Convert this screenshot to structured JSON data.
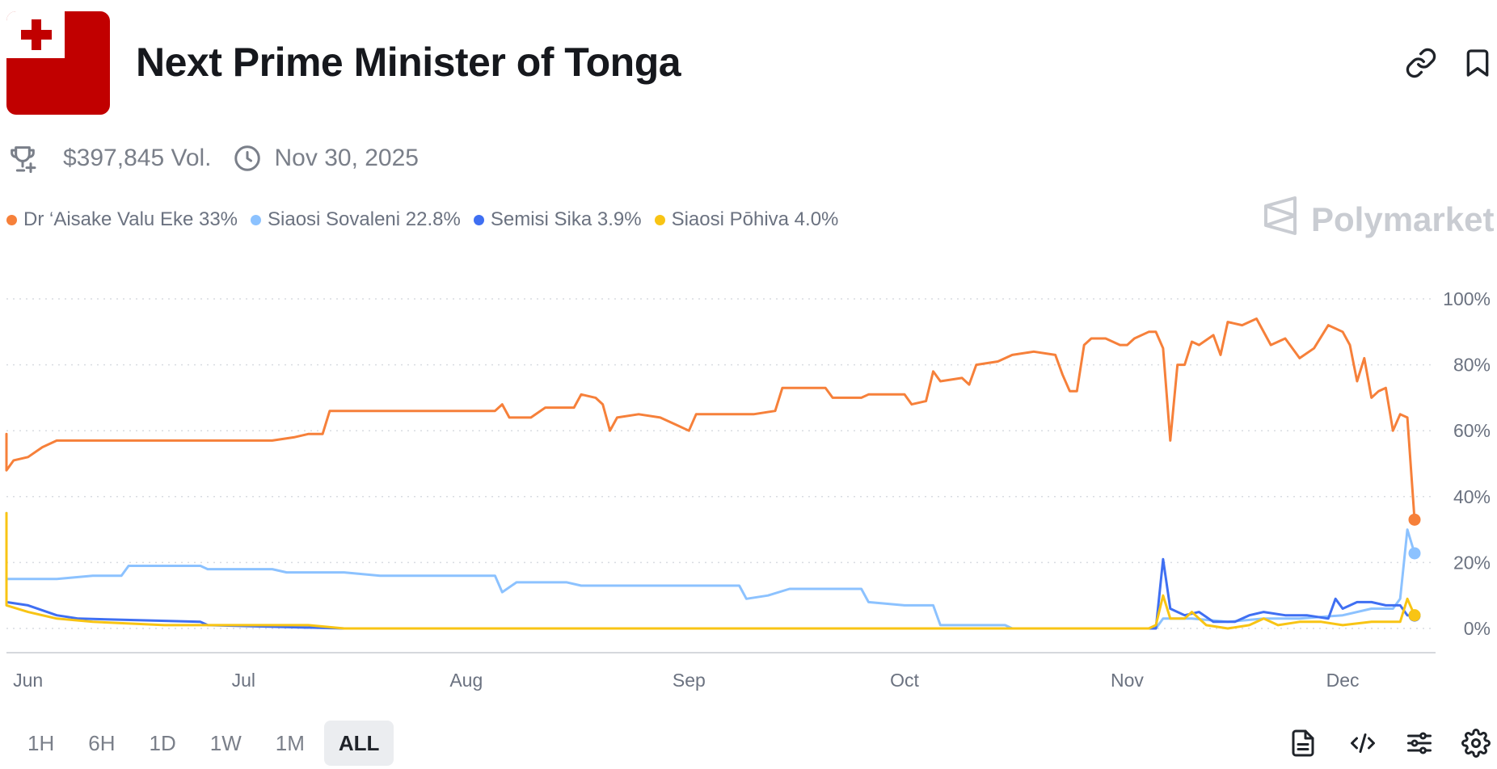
{
  "header": {
    "title": "Next Prime Minister of Tonga",
    "flag_icon": "tonga-flag",
    "actions": [
      {
        "icon": "link-icon"
      },
      {
        "icon": "bookmark-icon"
      }
    ]
  },
  "meta": {
    "volume": "$397,845 Vol.",
    "end_date": "Nov 30, 2025"
  },
  "brand": "Polymarket",
  "legend": [
    {
      "label": "Dr ‘Aisake Valu Eke 33%",
      "color": "#f6803a"
    },
    {
      "label": "Siaosi Sovaleni 22.8%",
      "color": "#8cc2ff"
    },
    {
      "label": "Semisi Sika 3.9%",
      "color": "#3f6ff2"
    },
    {
      "label": "Siaosi Pōhiva 4.0%",
      "color": "#f8c414"
    }
  ],
  "time_ranges": [
    {
      "label": "1H",
      "active": false
    },
    {
      "label": "6H",
      "active": false
    },
    {
      "label": "1D",
      "active": false
    },
    {
      "label": "1W",
      "active": false
    },
    {
      "label": "1M",
      "active": false
    },
    {
      "label": "ALL",
      "active": true
    }
  ],
  "tools": [
    "document-icon",
    "code-icon",
    "sliders-icon",
    "gear-icon"
  ],
  "chart_data": {
    "type": "line",
    "x_ticks": [
      "Jun",
      "Jul",
      "Aug",
      "Sep",
      "Oct",
      "Nov",
      "Dec"
    ],
    "y_ticks": [
      "100%",
      "80%",
      "60%",
      "40%",
      "20%",
      "0%"
    ],
    "ylim": [
      0,
      100
    ],
    "xlim": [
      "2025-05-29",
      "2025-12-11"
    ],
    "grid": true,
    "series": [
      {
        "name": "Dr ‘Aisake Valu Eke",
        "color": "#f6803a",
        "current": 33,
        "points": [
          [
            "2025-05-29",
            59
          ],
          [
            "2025-05-29",
            48
          ],
          [
            "2025-05-30",
            51
          ],
          [
            "2025-06-01",
            52
          ],
          [
            "2025-06-03",
            55
          ],
          [
            "2025-06-05",
            57
          ],
          [
            "2025-06-12",
            57
          ],
          [
            "2025-06-20",
            57
          ],
          [
            "2025-06-30",
            57
          ],
          [
            "2025-07-05",
            57
          ],
          [
            "2025-07-08",
            58
          ],
          [
            "2025-07-10",
            59
          ],
          [
            "2025-07-12",
            59
          ],
          [
            "2025-07-13",
            66
          ],
          [
            "2025-07-20",
            66
          ],
          [
            "2025-07-25",
            66
          ],
          [
            "2025-08-01",
            66
          ],
          [
            "2025-08-05",
            66
          ],
          [
            "2025-08-06",
            68
          ],
          [
            "2025-08-07",
            64
          ],
          [
            "2025-08-10",
            64
          ],
          [
            "2025-08-12",
            67
          ],
          [
            "2025-08-16",
            67
          ],
          [
            "2025-08-17",
            71
          ],
          [
            "2025-08-19",
            70
          ],
          [
            "2025-08-20",
            68
          ],
          [
            "2025-08-21",
            60
          ],
          [
            "2025-08-22",
            64
          ],
          [
            "2025-08-25",
            65
          ],
          [
            "2025-08-28",
            64
          ],
          [
            "2025-08-30",
            62
          ],
          [
            "2025-09-01",
            60
          ],
          [
            "2025-09-02",
            65
          ],
          [
            "2025-09-05",
            65
          ],
          [
            "2025-09-10",
            65
          ],
          [
            "2025-09-13",
            66
          ],
          [
            "2025-09-14",
            73
          ],
          [
            "2025-09-20",
            73
          ],
          [
            "2025-09-21",
            70
          ],
          [
            "2025-09-25",
            70
          ],
          [
            "2025-09-26",
            71
          ],
          [
            "2025-10-01",
            71
          ],
          [
            "2025-10-02",
            68
          ],
          [
            "2025-10-04",
            69
          ],
          [
            "2025-10-05",
            78
          ],
          [
            "2025-10-06",
            75
          ],
          [
            "2025-10-09",
            76
          ],
          [
            "2025-10-10",
            74
          ],
          [
            "2025-10-11",
            80
          ],
          [
            "2025-10-14",
            81
          ],
          [
            "2025-10-16",
            83
          ],
          [
            "2025-10-19",
            84
          ],
          [
            "2025-10-22",
            83
          ],
          [
            "2025-10-23",
            77
          ],
          [
            "2025-10-24",
            72
          ],
          [
            "2025-10-25",
            72
          ],
          [
            "2025-10-26",
            86
          ],
          [
            "2025-10-27",
            88
          ],
          [
            "2025-10-29",
            88
          ],
          [
            "2025-10-31",
            86
          ],
          [
            "2025-11-01",
            86
          ],
          [
            "2025-11-02",
            88
          ],
          [
            "2025-11-04",
            90
          ],
          [
            "2025-11-05",
            90
          ],
          [
            "2025-11-06",
            85
          ],
          [
            "2025-11-07",
            57
          ],
          [
            "2025-11-08",
            80
          ],
          [
            "2025-11-09",
            80
          ],
          [
            "2025-11-10",
            87
          ],
          [
            "2025-11-11",
            86
          ],
          [
            "2025-11-13",
            89
          ],
          [
            "2025-11-14",
            83
          ],
          [
            "2025-11-15",
            93
          ],
          [
            "2025-11-17",
            92
          ],
          [
            "2025-11-19",
            94
          ],
          [
            "2025-11-21",
            86
          ],
          [
            "2025-11-23",
            88
          ],
          [
            "2025-11-25",
            82
          ],
          [
            "2025-11-27",
            85
          ],
          [
            "2025-11-29",
            92
          ],
          [
            "2025-12-01",
            90
          ],
          [
            "2025-12-02",
            86
          ],
          [
            "2025-12-03",
            75
          ],
          [
            "2025-12-04",
            82
          ],
          [
            "2025-12-05",
            70
          ],
          [
            "2025-12-06",
            72
          ],
          [
            "2025-12-07",
            73
          ],
          [
            "2025-12-08",
            60
          ],
          [
            "2025-12-09",
            65
          ],
          [
            "2025-12-10",
            64
          ],
          [
            "2025-12-11",
            33
          ]
        ]
      },
      {
        "name": "Siaosi Sovaleni",
        "color": "#8cc2ff",
        "current": 22.8,
        "points": [
          [
            "2025-05-29",
            35
          ],
          [
            "2025-05-29",
            15
          ],
          [
            "2025-06-01",
            15
          ],
          [
            "2025-06-05",
            15
          ],
          [
            "2025-06-10",
            16
          ],
          [
            "2025-06-14",
            16
          ],
          [
            "2025-06-15",
            19
          ],
          [
            "2025-06-18",
            19
          ],
          [
            "2025-06-25",
            19
          ],
          [
            "2025-06-26",
            18
          ],
          [
            "2025-07-05",
            18
          ],
          [
            "2025-07-07",
            17
          ],
          [
            "2025-07-15",
            17
          ],
          [
            "2025-07-20",
            16
          ],
          [
            "2025-08-05",
            16
          ],
          [
            "2025-08-06",
            11
          ],
          [
            "2025-08-08",
            14
          ],
          [
            "2025-08-15",
            14
          ],
          [
            "2025-08-17",
            13
          ],
          [
            "2025-08-25",
            13
          ],
          [
            "2025-09-05",
            13
          ],
          [
            "2025-09-08",
            13
          ],
          [
            "2025-09-09",
            9
          ],
          [
            "2025-09-12",
            10
          ],
          [
            "2025-09-15",
            12
          ],
          [
            "2025-09-20",
            12
          ],
          [
            "2025-09-25",
            12
          ],
          [
            "2025-09-26",
            8
          ],
          [
            "2025-10-01",
            7
          ],
          [
            "2025-10-05",
            7
          ],
          [
            "2025-10-06",
            1
          ],
          [
            "2025-10-10",
            1
          ],
          [
            "2025-10-15",
            1
          ],
          [
            "2025-10-16",
            0
          ],
          [
            "2025-11-05",
            0
          ],
          [
            "2025-11-06",
            3
          ],
          [
            "2025-11-08",
            3
          ],
          [
            "2025-11-10",
            3
          ],
          [
            "2025-11-15",
            2
          ],
          [
            "2025-11-20",
            3
          ],
          [
            "2025-11-25",
            3
          ],
          [
            "2025-12-01",
            4
          ],
          [
            "2025-12-05",
            6
          ],
          [
            "2025-12-08",
            6
          ],
          [
            "2025-12-09",
            9
          ],
          [
            "2025-12-10",
            30
          ],
          [
            "2025-12-11",
            22.8
          ]
        ]
      },
      {
        "name": "Semisi Sika",
        "color": "#3f6ff2",
        "current": 3.9,
        "points": [
          [
            "2025-05-29",
            8
          ],
          [
            "2025-06-01",
            7
          ],
          [
            "2025-06-05",
            4
          ],
          [
            "2025-06-08",
            3
          ],
          [
            "2025-06-25",
            2
          ],
          [
            "2025-06-26",
            1
          ],
          [
            "2025-07-15",
            0
          ],
          [
            "2025-09-05",
            0
          ],
          [
            "2025-10-10",
            0
          ],
          [
            "2025-11-05",
            0
          ],
          [
            "2025-11-06",
            21
          ],
          [
            "2025-11-07",
            6
          ],
          [
            "2025-11-09",
            4
          ],
          [
            "2025-11-11",
            5
          ],
          [
            "2025-11-13",
            2
          ],
          [
            "2025-11-16",
            2
          ],
          [
            "2025-11-18",
            4
          ],
          [
            "2025-11-20",
            5
          ],
          [
            "2025-11-23",
            4
          ],
          [
            "2025-11-26",
            4
          ],
          [
            "2025-11-29",
            3
          ],
          [
            "2025-11-30",
            9
          ],
          [
            "2025-12-01",
            6
          ],
          [
            "2025-12-03",
            8
          ],
          [
            "2025-12-05",
            8
          ],
          [
            "2025-12-07",
            7
          ],
          [
            "2025-12-09",
            7
          ],
          [
            "2025-12-10",
            4
          ],
          [
            "2025-12-11",
            3.9
          ]
        ]
      },
      {
        "name": "Siaosi Pōhiva",
        "color": "#f8c414",
        "current": 4.0,
        "points": [
          [
            "2025-05-29",
            35
          ],
          [
            "2025-05-29",
            7
          ],
          [
            "2025-06-01",
            5
          ],
          [
            "2025-06-05",
            3
          ],
          [
            "2025-06-10",
            2
          ],
          [
            "2025-06-20",
            1
          ],
          [
            "2025-07-10",
            1
          ],
          [
            "2025-07-15",
            0
          ],
          [
            "2025-09-01",
            0
          ],
          [
            "2025-10-01",
            0
          ],
          [
            "2025-11-04",
            0
          ],
          [
            "2025-11-05",
            1
          ],
          [
            "2025-11-06",
            10
          ],
          [
            "2025-11-07",
            3
          ],
          [
            "2025-11-09",
            3
          ],
          [
            "2025-11-10",
            5
          ],
          [
            "2025-11-12",
            1
          ],
          [
            "2025-11-15",
            0
          ],
          [
            "2025-11-18",
            1
          ],
          [
            "2025-11-20",
            3
          ],
          [
            "2025-11-22",
            1
          ],
          [
            "2025-11-25",
            2
          ],
          [
            "2025-11-28",
            2
          ],
          [
            "2025-12-01",
            1
          ],
          [
            "2025-12-05",
            2
          ],
          [
            "2025-12-09",
            2
          ],
          [
            "2025-12-10",
            9
          ],
          [
            "2025-12-11",
            4.0
          ]
        ]
      }
    ]
  }
}
